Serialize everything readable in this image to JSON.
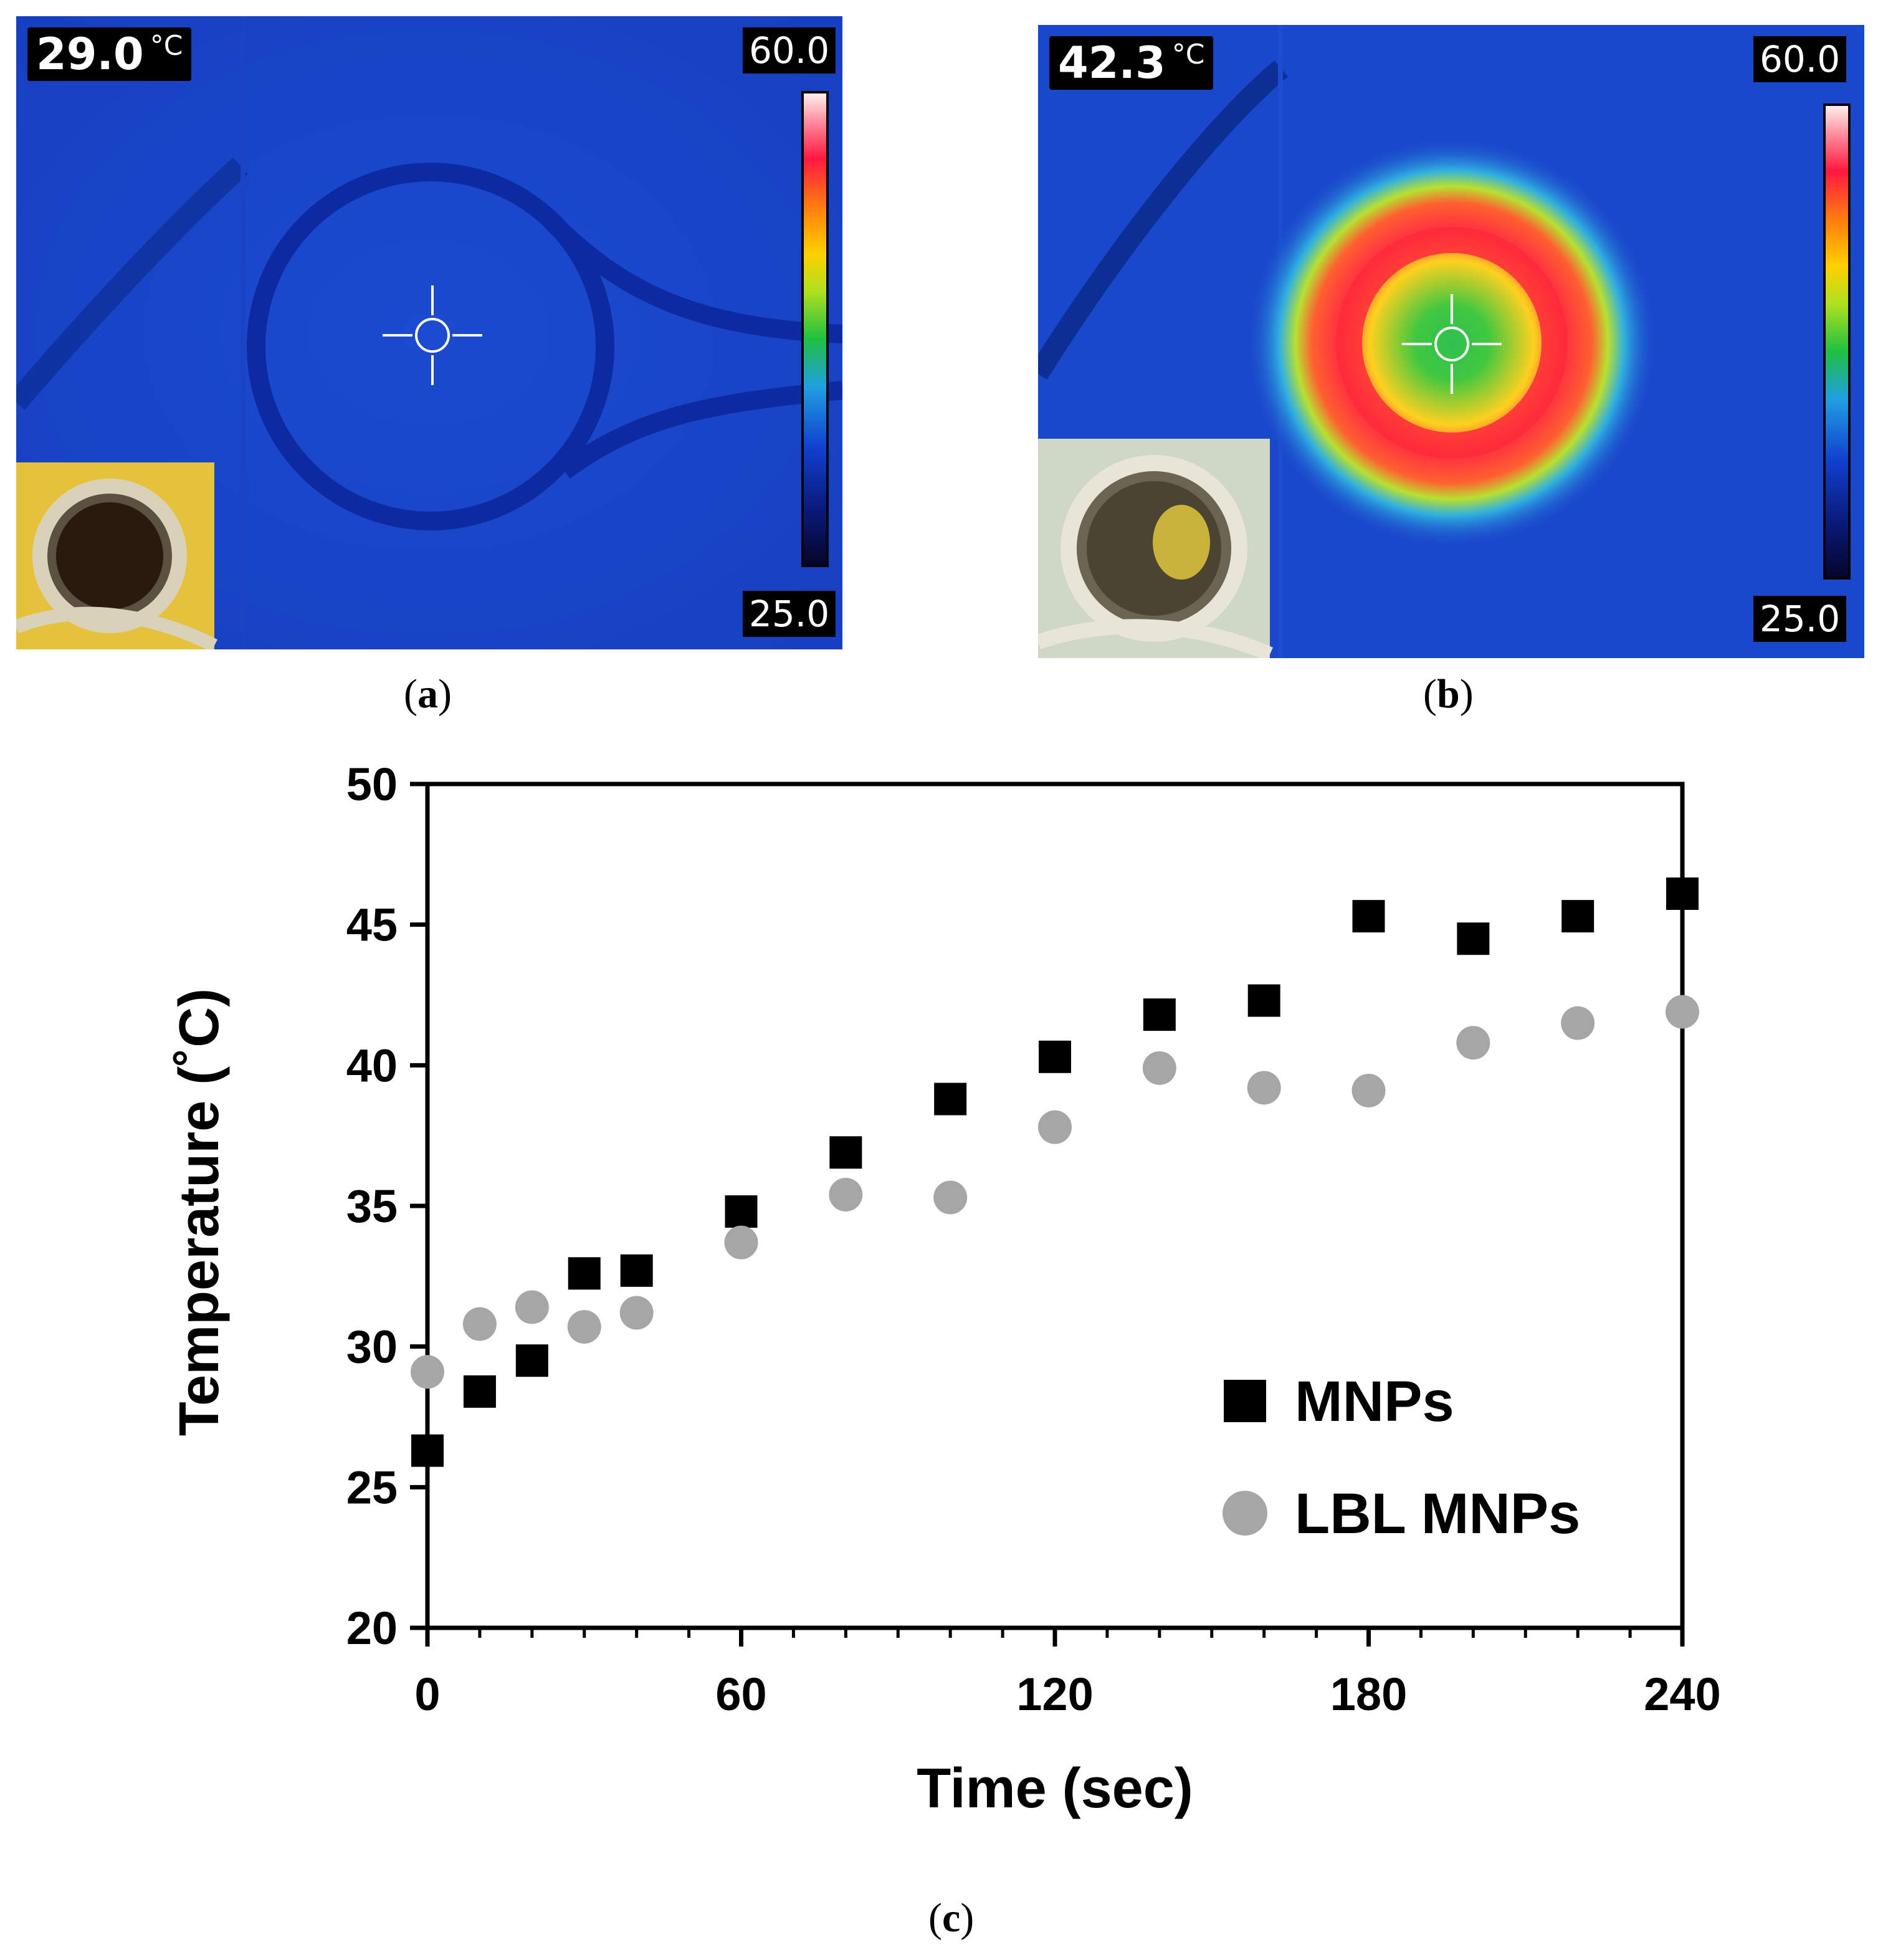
{
  "panels": [
    {
      "caption_letter": "a",
      "temperature": "29.0",
      "unit": "°C",
      "scale_max": "60.0",
      "scale_min": "25.0"
    },
    {
      "caption_letter": "b",
      "temperature": "42.3",
      "unit": "°C",
      "scale_max": "60.0",
      "scale_min": "25.0"
    }
  ],
  "colors": {
    "thermal_background": "#1a45c8",
    "hot_ring": "#ff2a3a",
    "mnps_marker": "#000000",
    "lbl_marker": "#a6a6a6"
  },
  "chart_caption_letter": "c",
  "chart_data": {
    "type": "scatter",
    "xlabel": "Time (sec)",
    "ylabel": "Temperature (˚C)",
    "xlim": [
      0,
      240
    ],
    "ylim": [
      20,
      50
    ],
    "xticks": [
      0,
      60,
      120,
      180,
      240
    ],
    "yticks": [
      20,
      25,
      30,
      35,
      40,
      45,
      50
    ],
    "grid": false,
    "legend_position": "bottom-right",
    "series": [
      {
        "name": "MNPs",
        "marker": "square",
        "color": "#000000",
        "x": [
          0,
          10,
          20,
          30,
          40,
          60,
          80,
          100,
          120,
          140,
          160,
          180,
          200,
          220,
          240
        ],
        "y": [
          26.3,
          28.4,
          29.5,
          32.6,
          32.7,
          34.8,
          36.9,
          38.8,
          40.3,
          41.8,
          42.3,
          45.3,
          44.5,
          45.3,
          46.1
        ]
      },
      {
        "name": "LBL MNPs",
        "marker": "circle",
        "color": "#a6a6a6",
        "x": [
          0,
          10,
          20,
          30,
          40,
          60,
          80,
          100,
          120,
          140,
          160,
          180,
          200,
          220,
          240
        ],
        "y": [
          29.1,
          30.8,
          31.4,
          30.7,
          31.2,
          33.7,
          35.4,
          35.3,
          37.8,
          39.9,
          39.2,
          39.1,
          40.8,
          41.5,
          41.9
        ]
      }
    ]
  }
}
